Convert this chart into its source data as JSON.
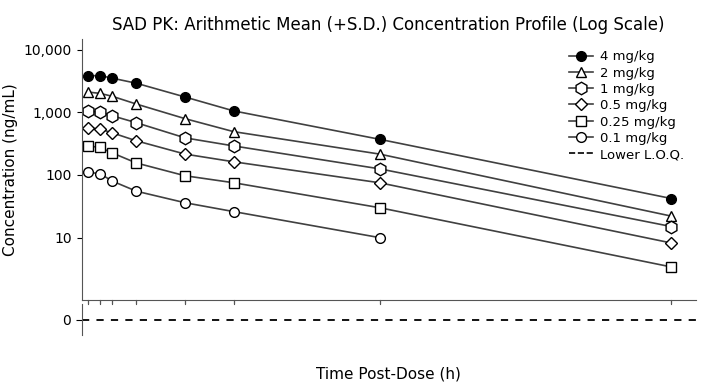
{
  "title": "SAD PK: Arithmetic Mean (+S.D.) Concentration Profile (Log Scale)",
  "xlabel": "Time Post-Dose (h)",
  "ylabel": "Concentration (ng/mL)",
  "time_points": [
    0,
    1,
    2,
    4,
    8,
    12,
    24,
    48
  ],
  "doses": [
    {
      "label": "4 mg/kg",
      "marker": "o",
      "mfc": "black",
      "mec": "black",
      "ms": 7,
      "values": [
        3800,
        3850,
        3500,
        2900,
        1750,
        1050,
        370,
        42
      ]
    },
    {
      "label": "2 mg/kg",
      "marker": "^",
      "mfc": "white",
      "mec": "black",
      "ms": 7,
      "values": [
        2100,
        2000,
        1800,
        1350,
        790,
        490,
        215,
        22
      ]
    },
    {
      "label": "1 mg/kg",
      "marker": "h",
      "mfc": "white",
      "mec": "black",
      "ms": 9,
      "values": [
        1050,
        1000,
        880,
        680,
        390,
        290,
        125,
        15
      ]
    },
    {
      "label": "0.5 mg/kg",
      "marker": "D",
      "mfc": "white",
      "mec": "black",
      "ms": 6,
      "values": [
        560,
        540,
        470,
        350,
        215,
        162,
        75,
        8.2
      ]
    },
    {
      "label": "0.25 mg/kg",
      "marker": "s",
      "mfc": "white",
      "mec": "black",
      "ms": 7,
      "values": [
        290,
        275,
        225,
        155,
        97,
        75,
        30,
        3.4
      ]
    },
    {
      "label": "0.1 mg/kg",
      "marker": "o",
      "mfc": "white",
      "mec": "black",
      "ms": 7,
      "values": [
        110,
        105,
        80,
        55,
        36,
        26,
        10.0,
        null
      ]
    }
  ],
  "loq_label": "Lower L.O.Q.",
  "yticks": [
    10,
    100,
    1000,
    10000
  ],
  "ytick_labels": [
    "10",
    "100",
    "1,000",
    "10,000"
  ],
  "ylim": [
    1,
    15000
  ],
  "xticks": [
    0,
    1,
    2,
    4,
    8,
    12,
    24,
    48
  ],
  "xlim": [
    -0.5,
    50
  ],
  "line_color": "#404040",
  "background_color": "#ffffff",
  "title_fontsize": 12,
  "axis_label_fontsize": 11,
  "tick_fontsize": 10,
  "legend_fontsize": 9.5
}
